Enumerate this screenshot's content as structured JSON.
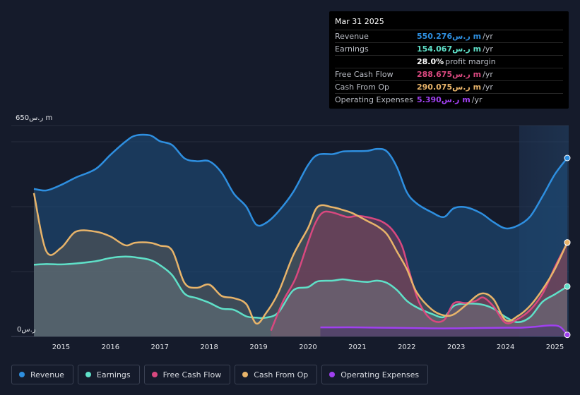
{
  "colors": {
    "revenue": "#2e8fe0",
    "earnings": "#5fe0c8",
    "fcf": "#d9487f",
    "cfo": "#e8b46a",
    "opex": "#a040f0",
    "background": "#151b2b"
  },
  "y_axis": {
    "top_label": "650ر.س m",
    "bottom_label": "0ر.س"
  },
  "tooltip": {
    "date": "Mar 31 2025",
    "rows": [
      {
        "label": "Revenue",
        "value": "550.276ر.س m",
        "unit": "/yr",
        "color": "#2e8fe0"
      },
      {
        "label": "Earnings",
        "value": "154.067ر.س m",
        "unit": "/yr",
        "color": "#5fe0c8"
      },
      {
        "label": "",
        "value": "28.0%",
        "unit": "profit margin",
        "color": "#ffffff"
      },
      {
        "label": "Free Cash Flow",
        "value": "288.675ر.س m",
        "unit": "/yr",
        "color": "#d9487f"
      },
      {
        "label": "Cash From Op",
        "value": "290.075ر.س m",
        "unit": "/yr",
        "color": "#e8b46a"
      },
      {
        "label": "Operating Expenses",
        "value": "5.390ر.س m",
        "unit": "/yr",
        "color": "#a040f0"
      }
    ]
  },
  "legend": [
    {
      "label": "Revenue",
      "color": "#2e8fe0"
    },
    {
      "label": "Earnings",
      "color": "#5fe0c8"
    },
    {
      "label": "Free Cash Flow",
      "color": "#d9487f"
    },
    {
      "label": "Cash From Op",
      "color": "#e8b46a"
    },
    {
      "label": "Operating Expenses",
      "color": "#a040f0"
    }
  ],
  "chart_data": {
    "type": "area",
    "x_ticks": [
      "2015",
      "2016",
      "2017",
      "2018",
      "2019",
      "2020",
      "2021",
      "2022",
      "2023",
      "2024",
      "2025"
    ],
    "ylim": [
      0,
      650
    ],
    "y_unit": "SAR m",
    "grid": true,
    "series": [
      {
        "name": "Revenue",
        "key": "revenue",
        "x": [
          2014.45,
          2014.7,
          2015.0,
          2015.3,
          2015.7,
          2016.0,
          2016.3,
          2016.5,
          2016.8,
          2017.0,
          2017.25,
          2017.5,
          2017.75,
          2018.0,
          2018.25,
          2018.5,
          2018.75,
          2018.95,
          2019.15,
          2019.4,
          2019.7,
          2020.0,
          2020.2,
          2020.5,
          2020.7,
          2020.9,
          2021.2,
          2021.4,
          2021.6,
          2021.8,
          2022.0,
          2022.2,
          2022.5,
          2022.75,
          2022.95,
          2023.2,
          2023.5,
          2023.75,
          2024.0,
          2024.25,
          2024.5,
          2024.75,
          2025.0,
          2025.25
        ],
        "y": [
          455,
          450,
          467,
          490,
          516,
          560,
          600,
          619,
          620,
          602,
          590,
          549,
          540,
          540,
          505,
          440,
          400,
          345,
          350,
          385,
          445,
          528,
          560,
          562,
          570,
          571,
          572,
          578,
          570,
          522,
          445,
          410,
          383,
          368,
          395,
          398,
          380,
          353,
          333,
          342,
          370,
          432,
          500,
          550
        ]
      },
      {
        "name": "Earnings",
        "key": "earnings",
        "x": [
          2014.45,
          2014.7,
          2015.0,
          2015.3,
          2015.7,
          2016.0,
          2016.3,
          2016.5,
          2016.8,
          2017.0,
          2017.25,
          2017.5,
          2017.75,
          2018.0,
          2018.25,
          2018.5,
          2018.75,
          2018.95,
          2019.15,
          2019.4,
          2019.7,
          2020.0,
          2020.2,
          2020.5,
          2020.7,
          2020.9,
          2021.2,
          2021.4,
          2021.6,
          2021.8,
          2022.0,
          2022.2,
          2022.5,
          2022.75,
          2022.95,
          2023.2,
          2023.5,
          2023.75,
          2024.0,
          2024.25,
          2024.5,
          2024.75,
          2025.0,
          2025.25
        ],
        "y": [
          221,
          223,
          222,
          225,
          232,
          242,
          246,
          244,
          236,
          220,
          189,
          132,
          118,
          104,
          86,
          82,
          62,
          58,
          58,
          74,
          142,
          152,
          170,
          172,
          176,
          172,
          168,
          172,
          165,
          143,
          110,
          90,
          70,
          60,
          94,
          101,
          99,
          86,
          60,
          44,
          60,
          107,
          130,
          154
        ]
      },
      {
        "name": "Free Cash Flow",
        "key": "fcf",
        "x": [
          2019.25,
          2019.5,
          2019.75,
          2020.0,
          2020.15,
          2020.3,
          2020.5,
          2020.8,
          2021.0,
          2021.25,
          2021.5,
          2021.7,
          2021.9,
          2022.05,
          2022.25,
          2022.5,
          2022.75,
          2022.95,
          2023.2,
          2023.4,
          2023.55,
          2023.75,
          2024.0,
          2024.25,
          2024.5,
          2024.75,
          2025.0,
          2025.25
        ],
        "y": [
          18,
          110,
          180,
          290,
          350,
          382,
          382,
          368,
          372,
          366,
          354,
          330,
          280,
          200,
          105,
          52,
          50,
          102,
          103,
          110,
          120,
          94,
          42,
          54,
          82,
          132,
          214,
          289
        ]
      },
      {
        "name": "Cash From Op",
        "key": "cfo",
        "x": [
          2014.45,
          2014.7,
          2015.0,
          2015.3,
          2015.7,
          2016.0,
          2016.3,
          2016.5,
          2016.8,
          2017.0,
          2017.25,
          2017.5,
          2017.75,
          2018.0,
          2018.25,
          2018.5,
          2018.75,
          2018.95,
          2019.15,
          2019.4,
          2019.7,
          2020.0,
          2020.2,
          2020.5,
          2020.7,
          2020.9,
          2021.2,
          2021.4,
          2021.6,
          2021.8,
          2022.0,
          2022.2,
          2022.5,
          2022.75,
          2022.95,
          2023.2,
          2023.5,
          2023.75,
          2024.0,
          2024.25,
          2024.5,
          2024.75,
          2025.0,
          2025.25
        ],
        "y": [
          442,
          263,
          273,
          323,
          323,
          308,
          281,
          289,
          289,
          280,
          265,
          165,
          150,
          160,
          125,
          118,
          100,
          40,
          72,
          135,
          250,
          334,
          400,
          398,
          390,
          380,
          356,
          340,
          315,
          262,
          208,
          136,
          84,
          65,
          68,
          97,
          132,
          116,
          50,
          63,
          95,
          145,
          208,
          290
        ]
      },
      {
        "name": "Operating Expenses",
        "key": "opex",
        "x": [
          2020.25,
          2020.5,
          2021.0,
          2021.5,
          2022.0,
          2022.5,
          2023.0,
          2023.5,
          2024.0,
          2024.3,
          2024.6,
          2024.9,
          2025.1,
          2025.25
        ],
        "y": [
          28,
          28,
          28,
          27,
          26,
          25,
          25,
          26,
          27,
          27,
          30,
          34,
          30,
          5
        ]
      }
    ]
  }
}
